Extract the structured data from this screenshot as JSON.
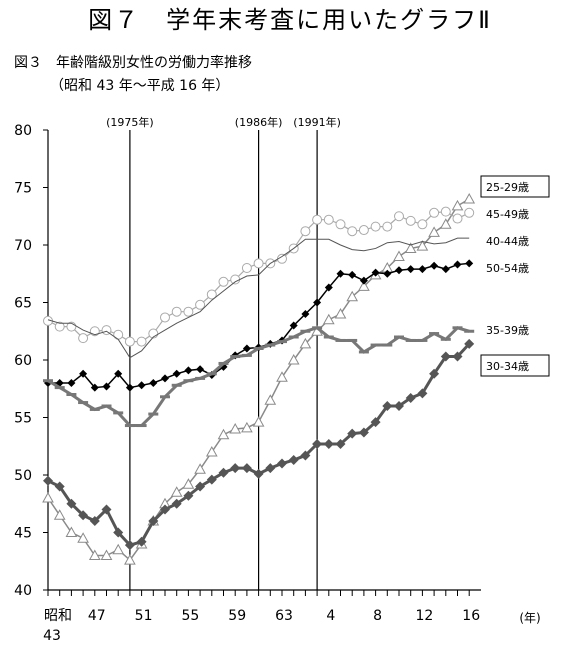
{
  "page_title": "図７　学年末考査に用いたグラフⅡ",
  "chart_data": {
    "type": "line",
    "title": "図３　年齢階級別女性の労働力率推移",
    "subtitle": "（昭和 43 年～平成 16 年）",
    "x_era_label": "昭和",
    "x_unit_label": "(年)",
    "categories": [
      "43",
      null,
      null,
      null,
      "47",
      null,
      null,
      null,
      "51",
      null,
      null,
      null,
      "55",
      null,
      null,
      null,
      "59",
      null,
      null,
      null,
      "63",
      null,
      null,
      null,
      "4",
      null,
      null,
      null,
      "8",
      null,
      null,
      null,
      "12",
      null,
      null,
      null,
      "16"
    ],
    "ylim": [
      40,
      80
    ],
    "yticks": [
      40,
      45,
      50,
      55,
      60,
      65,
      70,
      75,
      80
    ],
    "vlines": [
      {
        "index": 7,
        "label": "(1975年)"
      },
      {
        "index": 18,
        "label": "(1986年)"
      },
      {
        "index": 23,
        "label": "(1991年)"
      }
    ],
    "series": [
      {
        "name": "25-29歳",
        "color": "#8a8a8a",
        "marker": "triangle",
        "boxed": true,
        "values": [
          48,
          46.5,
          45,
          44.5,
          43,
          43,
          43.5,
          42.6,
          44,
          46,
          47.5,
          48.5,
          49.2,
          50.5,
          52,
          53.5,
          54,
          54.1,
          54.6,
          56.5,
          58.5,
          60,
          61.4,
          62.5,
          63.5,
          64,
          65.5,
          66.4,
          67.4,
          68,
          69,
          69.7,
          69.9,
          71.1,
          71.8,
          73.4,
          74
        ]
      },
      {
        "name": "45-49歳",
        "color": "#aaaaaa",
        "marker": "circle",
        "boxed": false,
        "values": [
          63.4,
          62.9,
          62.9,
          61.9,
          62.5,
          62.6,
          62.2,
          61.6,
          61.6,
          62.3,
          63.7,
          64.2,
          64.2,
          64.8,
          65.7,
          66.8,
          67,
          68,
          68.4,
          68.4,
          68.8,
          69.7,
          71.2,
          72.2,
          72.2,
          71.8,
          71.2,
          71.3,
          71.6,
          71.6,
          72.5,
          72.1,
          71.8,
          72.8,
          72.9,
          72.3,
          72.8
        ]
      },
      {
        "name": "40-44歳",
        "color": "#555555",
        "marker": "none",
        "boxed": false,
        "values": [
          63.5,
          63.2,
          63.2,
          62.6,
          62.2,
          62.5,
          61.8,
          60.2,
          60.8,
          62,
          62.6,
          63.2,
          63.7,
          64.2,
          65.2,
          66,
          66.8,
          67.3,
          67.4,
          68.4,
          69,
          69.7,
          70.5,
          70.5,
          70.5,
          70,
          69.6,
          69.5,
          69.7,
          70.2,
          70.3,
          70,
          70.3,
          70.1,
          70.2,
          70.6,
          70.6
        ]
      },
      {
        "name": "50-54歳",
        "color": "#000000",
        "marker": "diamond",
        "boxed": false,
        "values": [
          58,
          58,
          58,
          58.8,
          57.6,
          57.7,
          58.8,
          57.6,
          57.8,
          58,
          58.4,
          58.8,
          59.1,
          59.2,
          58.7,
          59.4,
          60.4,
          61,
          61.1,
          61.4,
          61.7,
          63,
          64,
          65,
          66.3,
          67.5,
          67.4,
          66.9,
          67.6,
          67.5,
          67.8,
          67.9,
          67.9,
          68.2,
          67.9,
          68.3,
          68.4
        ]
      },
      {
        "name": "35-39歳",
        "color": "#777777",
        "marker": "dash",
        "boxed": false,
        "values": [
          58.2,
          57.6,
          57,
          56.3,
          55.7,
          56,
          55.4,
          54.3,
          54.3,
          55.3,
          56.8,
          57.8,
          58.2,
          58.4,
          58.8,
          59.7,
          60.3,
          60.4,
          61,
          61.3,
          61.6,
          62,
          62.5,
          62.8,
          62,
          61.7,
          61.7,
          60.7,
          61.3,
          61.3,
          62,
          61.7,
          61.7,
          62.3,
          61.8,
          62.8,
          62.5
        ]
      },
      {
        "name": "30-34歳",
        "color": "#555555",
        "marker": "bigdiamond",
        "boxed": true,
        "values": [
          49.5,
          49,
          47.5,
          46.5,
          46,
          47,
          45,
          43.9,
          44.2,
          46,
          47,
          47.5,
          48.2,
          49,
          49.6,
          50.2,
          50.6,
          50.6,
          50.1,
          50.6,
          51,
          51.3,
          51.7,
          52.7,
          52.7,
          52.7,
          53.6,
          53.7,
          54.6,
          56,
          56,
          56.7,
          57.1,
          58.8,
          60.3,
          60.3,
          61.4
        ]
      }
    ]
  }
}
